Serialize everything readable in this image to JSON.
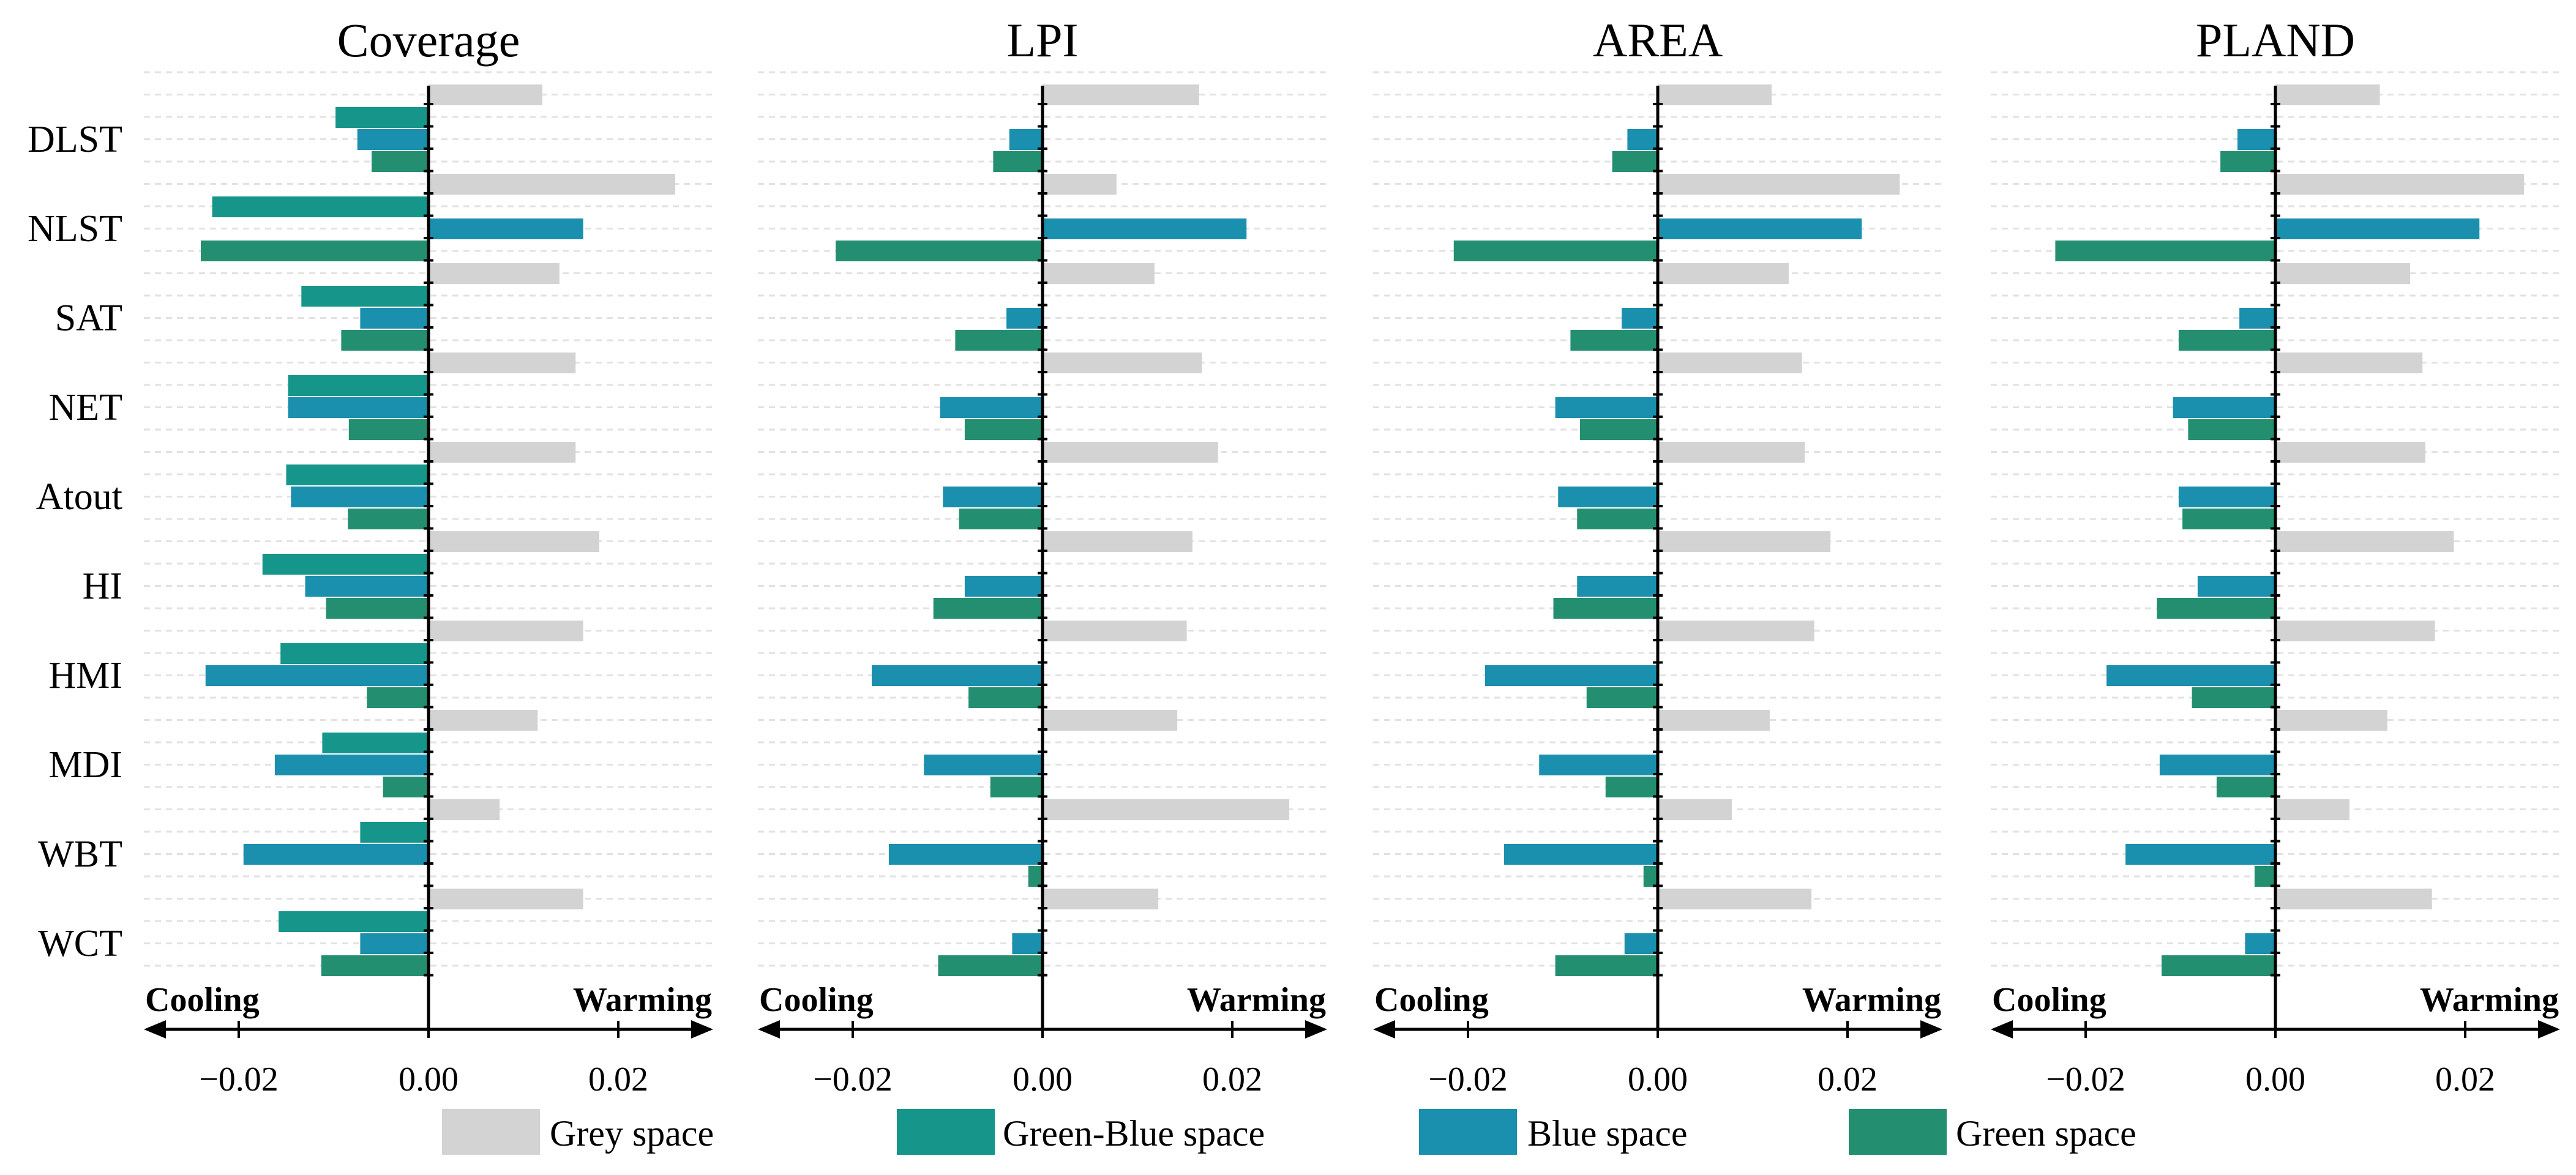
{
  "chart_data": {
    "type": "bar",
    "orientation": "horizontal",
    "categories": [
      "DLST",
      "NLST",
      "SAT",
      "NET",
      "Atout",
      "HI",
      "HMI",
      "MDI",
      "WBT",
      "WCT"
    ],
    "xlim": [
      -0.03,
      0.03
    ],
    "xticks": [
      -0.02,
      0.0,
      0.02
    ],
    "xtick_labels": [
      "−0.02",
      "0.00",
      "0.02"
    ],
    "direction_labels": {
      "left": "Cooling",
      "right": "Warming"
    },
    "series_names": [
      "Grey space",
      "Green-Blue space",
      "Blue space",
      "Green space"
    ],
    "colors": {
      "Grey space": "#d3d3d3",
      "Green-Blue space": "#16968a",
      "Blue space": "#1a8fae",
      "Green space": "#238f70"
    },
    "panels": [
      {
        "title": "Coverage",
        "series": [
          {
            "name": "Grey space",
            "values": [
              0.012,
              0.026,
              0.0138,
              0.0155,
              0.0155,
              0.018,
              0.0163,
              0.0115,
              0.0075,
              0.0163
            ]
          },
          {
            "name": "Green-Blue space",
            "values": [
              -0.0098,
              -0.0228,
              -0.0134,
              -0.0148,
              -0.015,
              -0.0175,
              -0.0156,
              -0.0112,
              -0.0072,
              -0.0158
            ]
          },
          {
            "name": "Blue space",
            "values": [
              -0.0075,
              0.0163,
              -0.0072,
              -0.0148,
              -0.0145,
              -0.013,
              -0.0235,
              -0.0162,
              -0.0195,
              -0.0072
            ]
          },
          {
            "name": "Green space",
            "values": [
              -0.006,
              -0.024,
              -0.0092,
              -0.0084,
              -0.0085,
              -0.0108,
              -0.0065,
              -0.0048,
              0.0,
              -0.0113
            ]
          }
        ]
      },
      {
        "title": "LPI",
        "series": [
          {
            "name": "Grey space",
            "values": [
              0.0165,
              0.0078,
              0.0118,
              0.0168,
              0.0185,
              0.0158,
              0.0152,
              0.0142,
              0.026,
              0.0122
            ]
          },
          {
            "name": "Green-Blue space",
            "values": [
              0,
              0,
              0,
              0,
              0,
              0,
              0,
              0,
              0,
              0
            ]
          },
          {
            "name": "Blue space",
            "values": [
              -0.0035,
              0.0215,
              -0.0038,
              -0.0108,
              -0.0105,
              -0.0082,
              -0.018,
              -0.0125,
              -0.0162,
              -0.0032
            ]
          },
          {
            "name": "Green space",
            "values": [
              -0.0052,
              -0.0218,
              -0.0092,
              -0.0082,
              -0.0088,
              -0.0115,
              -0.0078,
              -0.0055,
              -0.0015,
              -0.011
            ]
          }
        ]
      },
      {
        "title": "AREA",
        "series": [
          {
            "name": "Grey space",
            "values": [
              0.012,
              0.0255,
              0.0138,
              0.0152,
              0.0155,
              0.0182,
              0.0165,
              0.0118,
              0.0078,
              0.0162
            ]
          },
          {
            "name": "Green-Blue space",
            "values": [
              0,
              0,
              0,
              0,
              0,
              0,
              0,
              0,
              0,
              0
            ]
          },
          {
            "name": "Blue space",
            "values": [
              -0.0032,
              0.0215,
              -0.0038,
              -0.0108,
              -0.0105,
              -0.0085,
              -0.0182,
              -0.0125,
              -0.0162,
              -0.0035
            ]
          },
          {
            "name": "Green space",
            "values": [
              -0.0048,
              -0.0215,
              -0.0092,
              -0.0082,
              -0.0085,
              -0.011,
              -0.0075,
              -0.0055,
              -0.0015,
              -0.0108
            ]
          }
        ]
      },
      {
        "title": "PLAND",
        "series": [
          {
            "name": "Grey space",
            "values": [
              0.011,
              0.0262,
              0.0142,
              0.0155,
              0.0158,
              0.0188,
              0.0168,
              0.0118,
              0.0078,
              0.0165
            ]
          },
          {
            "name": "Green-Blue space",
            "values": [
              0,
              0,
              0,
              0,
              0,
              0,
              0,
              0,
              0,
              0
            ]
          },
          {
            "name": "Blue space",
            "values": [
              -0.004,
              0.0215,
              -0.0038,
              -0.0108,
              -0.0102,
              -0.0082,
              -0.0178,
              -0.0122,
              -0.0158,
              -0.0032
            ]
          },
          {
            "name": "Green space",
            "values": [
              -0.0058,
              -0.0232,
              -0.0102,
              -0.0092,
              -0.0098,
              -0.0125,
              -0.0088,
              -0.0062,
              -0.0022,
              -0.012
            ]
          }
        ]
      }
    ]
  }
}
